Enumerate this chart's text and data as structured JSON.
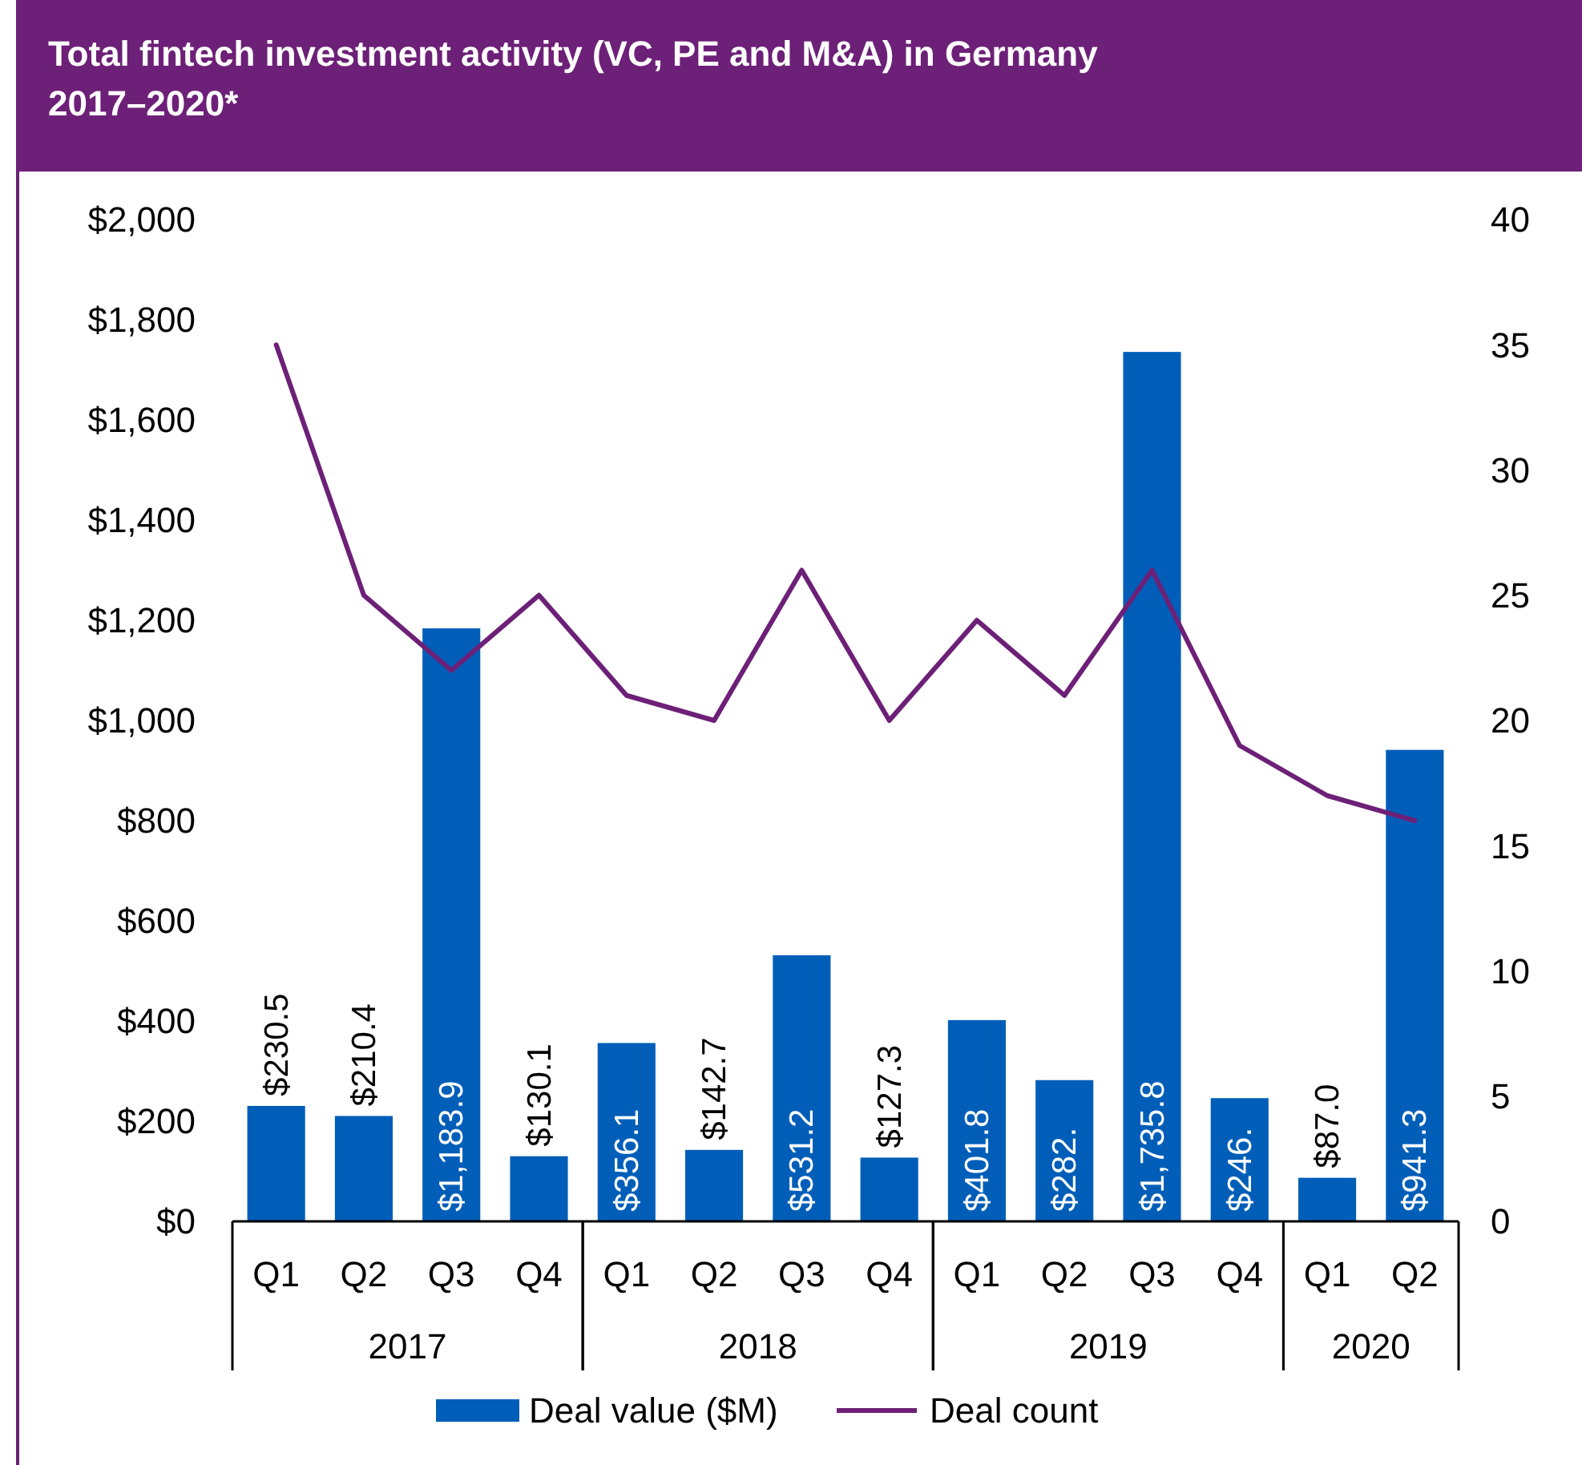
{
  "chart_data": {
    "type": "bar",
    "title": "Total fintech investment activity (VC, PE and M&A) in Germany 2017–2020*",
    "categories": [
      "Q1",
      "Q2",
      "Q3",
      "Q4",
      "Q1",
      "Q2",
      "Q3",
      "Q4",
      "Q1",
      "Q2",
      "Q3",
      "Q4",
      "Q1",
      "Q2"
    ],
    "annotations": [
      "2017",
      "2018",
      "2019",
      "2020"
    ],
    "series": [
      {
        "name": "Deal value ($M)",
        "color": "#005eb8",
        "values": [
          230.5,
          210.4,
          1183.9,
          130.1,
          356.1,
          142.7,
          531.2,
          127.3,
          401.8,
          282,
          1735.8,
          246,
          87.0,
          941.3
        ],
        "value_labels": [
          "$230.5",
          "$210.4",
          "$1,183.9",
          "$130.1",
          "$356.1",
          "$142.7",
          "$531.2",
          "$127.3",
          "$401.8",
          "$282.",
          "$1,735.8",
          "$246.",
          "$87.0",
          "$941.3"
        ]
      },
      {
        "name": "Deal count",
        "type": "line",
        "axis": "y2",
        "color": "#6d2077",
        "values": [
          35,
          25,
          22,
          25,
          21,
          20,
          26,
          20,
          24,
          21,
          26,
          19,
          17,
          16
        ]
      }
    ],
    "ylim": [
      0,
      2000
    ],
    "yticks": [
      {
        "value": 0,
        "label": "$0"
      },
      {
        "value": 200,
        "label": "$200"
      },
      {
        "value": 400,
        "label": "$400"
      },
      {
        "value": 600,
        "label": "$600"
      },
      {
        "value": 800,
        "label": "$800"
      },
      {
        "value": 1000,
        "label": "$1,000"
      },
      {
        "value": 1200,
        "label": "$1,200"
      },
      {
        "value": 1400,
        "label": "$1,400"
      },
      {
        "value": 1600,
        "label": "$1,600"
      },
      {
        "value": 1800,
        "label": "$1,800"
      },
      {
        "value": 2000,
        "label": "$2,000"
      }
    ],
    "y2lim": [
      0,
      40
    ],
    "y2ticks": [
      0,
      5,
      10,
      15,
      20,
      25,
      30,
      35,
      40
    ],
    "legend": "bottom",
    "grid": false,
    "marker": "none",
    "line_style": "solid"
  }
}
